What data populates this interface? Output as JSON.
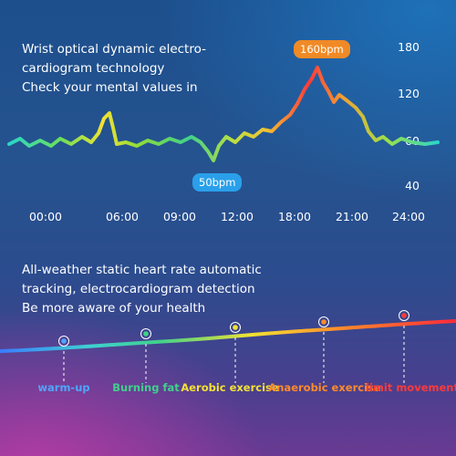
{
  "intro": {
    "lines": [
      "Wrist optical dynamic electro-",
      "cardiogram technology",
      "Check your mental values in"
    ]
  },
  "heart_chart": {
    "y_ticks": [
      "180",
      "120",
      "60",
      "40"
    ],
    "x_ticks": [
      "00:00",
      "06:00",
      "09:00",
      "12:00",
      "18:00",
      "21:00",
      "24:00"
    ],
    "max_label": "160bpm",
    "min_label": "50bpm",
    "colors": {
      "max_chip": "#f08a26",
      "min_chip": "#2aa0ea"
    }
  },
  "tracking": {
    "lines": [
      "All-weather static heart rate automatic",
      "tracking, electrocardiogram detection",
      "Be more aware of your health"
    ]
  },
  "zones": [
    {
      "label": "warm-up",
      "color": "#4da6ff"
    },
    {
      "label": "Burning fat",
      "color": "#3fd18a"
    },
    {
      "label": "Aerobic exercise",
      "color": "#f2e233"
    },
    {
      "label": "Anaerobic exercise",
      "color": "#ff8a2a"
    },
    {
      "label": "limit movement",
      "color": "#ff3a3a"
    }
  ]
}
